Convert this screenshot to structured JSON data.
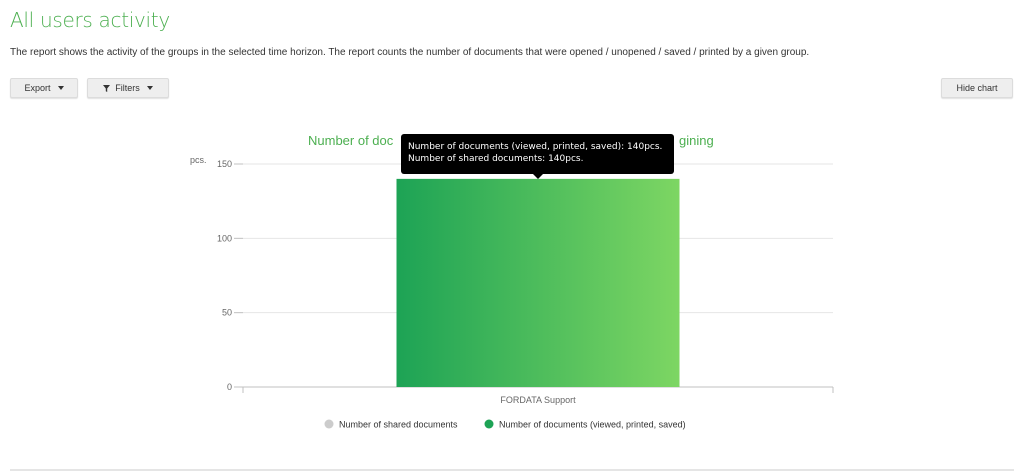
{
  "page": {
    "title": "All users activity",
    "description": "The report shows the activity of the groups in the selected time horizon. The report counts the number of documents that were opened / unopened / saved / printed by a given group.",
    "accent_color": "#4caf50"
  },
  "toolbar": {
    "export_label": "Export",
    "filters_label": "Filters",
    "hide_chart_label": "Hide chart"
  },
  "tooltip": {
    "line1": "Number of documents (viewed, printed, saved): 140pcs.",
    "line2": "Number of shared documents: 140pcs."
  },
  "chart_data": {
    "type": "bar",
    "title": "Number of doc",
    "title_tail": "gining",
    "ylabel": "pcs.",
    "ylim": [
      0,
      150
    ],
    "yticks": [
      0,
      50,
      100,
      150
    ],
    "categories": [
      "FORDATA Support"
    ],
    "series": [
      {
        "name": "Number of shared documents",
        "values": [
          140
        ],
        "color": "#cccccc"
      },
      {
        "name": "Number of documents (viewed, printed, saved)",
        "values": [
          140
        ],
        "color": "#1da355",
        "gradient_end": "#7dd663"
      }
    ],
    "grid": true,
    "legend": "bottom-center"
  }
}
